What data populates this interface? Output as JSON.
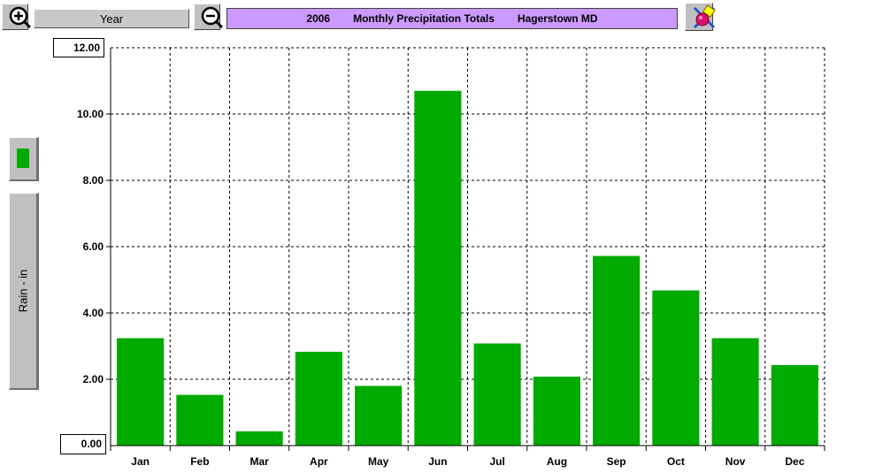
{
  "toolbar": {
    "period_label": "Year",
    "zoom_in_icon": "zoom-in-icon",
    "zoom_out_icon": "zoom-out-icon",
    "print_icon": "print-icon"
  },
  "header": {
    "year": "2006",
    "title": "Monthly Precipitation Totals",
    "location": "Hagerstown MD"
  },
  "colors": {
    "bar": "#00aa00",
    "title_bg": "#cc99ff",
    "button_bg": "#c0c0c0",
    "grid": "#000000"
  },
  "chart_data": {
    "type": "bar",
    "title": "Monthly Precipitation Totals",
    "ylabel": "Rain - in",
    "xlabel": "",
    "ylim": [
      0,
      12
    ],
    "ylim_labels": {
      "max": "12.00",
      "min": "0.00"
    },
    "yticks": [
      "2.00",
      "4.00",
      "6.00",
      "8.00",
      "10.00"
    ],
    "ytick_values": [
      2,
      4,
      6,
      8,
      10
    ],
    "grid": true,
    "categories": [
      "Jan",
      "Feb",
      "Mar",
      "Apr",
      "May",
      "Jun",
      "Jul",
      "Aug",
      "Sep",
      "Oct",
      "Nov",
      "Dec"
    ],
    "values": [
      3.24,
      1.53,
      0.43,
      2.83,
      1.8,
      10.7,
      3.08,
      2.08,
      5.72,
      4.68,
      3.24,
      2.43
    ]
  }
}
